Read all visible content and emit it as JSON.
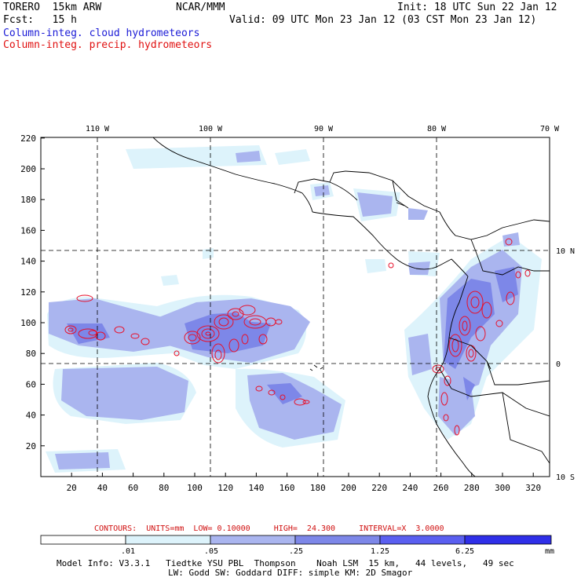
{
  "header": {
    "model": "TORERO  15km ARW",
    "org": "NCAR/MMM",
    "init": "Init: 18 UTC Sun 22 Jan 12",
    "fcst": "Fcst:   15 h",
    "valid": "Valid: 09 UTC Mon 23 Jan 12 (03 CST Mon 23 Jan 12)",
    "field1": "Column-integ. cloud hydrometeors",
    "field2": "Column-integ. precip. hydrometeors"
  },
  "map": {
    "top_lon_labels": [
      "110 W",
      "100 W",
      "90 W",
      "80 W",
      "70 W"
    ],
    "right_lat_labels": [
      "10 N",
      "0",
      "10 S"
    ],
    "y_ticks": [
      "20",
      "40",
      "60",
      "80",
      "100",
      "120",
      "140",
      "160",
      "180",
      "200",
      "220"
    ],
    "x_ticks": [
      "20",
      "40",
      "60",
      "80",
      "100",
      "120",
      "140",
      "160",
      "180",
      "200",
      "220",
      "240",
      "260",
      "280",
      "300",
      "320"
    ],
    "colors": {
      "cloud_light": "#ddf3fb",
      "cloud_mid": "#aab5ef",
      "cloud_strong": "#7d87e8",
      "precip_contour": "#e8102a",
      "coast": "#000000"
    }
  },
  "contours_line": "CONTOURS:  UNITS=mm  LOW= 0.10000     HIGH=  24.300     INTERVAL=X  3.0000",
  "legend": {
    "labels": [
      ".01",
      ".05",
      ".25",
      "1.25",
      "6.25"
    ],
    "unit": "mm",
    "colors": [
      "#ffffff",
      "#ddf3fb",
      "#aab5ef",
      "#7d87e8",
      "#5a5ff0",
      "#2f2fe8"
    ]
  },
  "footer": {
    "line1": "Model Info: V3.3.1   Tiedtke YSU PBL  Thompson    Noah LSM  15 km,   44 levels,   49 sec",
    "line2": "LW: Godd SW: Goddard DIFF: simple KM: 2D Smagor"
  }
}
